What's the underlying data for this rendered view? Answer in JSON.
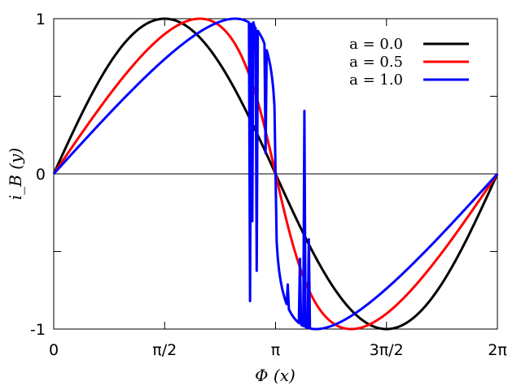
{
  "chart_data": {
    "type": "line",
    "xlabel": "Φ (x)",
    "ylabel": "i_B (y)",
    "xlim": [
      0,
      6.283185307
    ],
    "ylim": [
      -1,
      1
    ],
    "x_ticks": [
      {
        "value": 0,
        "label": "0"
      },
      {
        "value": 1.5707963,
        "label": "π/2"
      },
      {
        "value": 3.1415927,
        "label": "π"
      },
      {
        "value": 4.712389,
        "label": "3π/2"
      },
      {
        "value": 6.2831853,
        "label": "2π"
      }
    ],
    "y_ticks": [
      {
        "value": 1,
        "label": "1"
      },
      {
        "value": 0,
        "label": "0"
      },
      {
        "value": -1,
        "label": "-1"
      }
    ],
    "zero_line": true,
    "grid": false,
    "legend_position": "top-right",
    "series": [
      {
        "name": "a = 0.0",
        "a": 0.0,
        "color": "#000000",
        "x": [
          0,
          0.3927,
          0.7854,
          1.1781,
          1.5708,
          1.9635,
          2.3562,
          2.7489,
          3.1416,
          3.5343,
          3.927,
          4.3197,
          4.7124,
          5.1051,
          5.4978,
          5.8905,
          6.2832
        ],
        "values": [
          0,
          0.383,
          0.707,
          0.924,
          1.0,
          0.924,
          0.707,
          0.383,
          0,
          -0.383,
          -0.707,
          -0.924,
          -1.0,
          -0.924,
          -0.707,
          -0.383,
          0
        ]
      },
      {
        "name": "a = 0.5",
        "a": 0.5,
        "color": "#ff0000",
        "x": [
          0,
          0.3927,
          0.7854,
          1.1781,
          1.5708,
          1.9635,
          2.0944,
          2.3562,
          2.7489,
          3.1416,
          3.5343,
          3.927,
          4.1888,
          4.3197,
          4.7124,
          5.1051,
          5.4978,
          5.8905,
          6.2832
        ],
        "values": [
          0,
          0.312,
          0.603,
          0.835,
          0.97,
          1.0,
          0.995,
          0.933,
          0.601,
          0,
          -0.601,
          -0.933,
          -1.0,
          -0.994,
          -0.902,
          -0.712,
          -0.45,
          -0.19,
          0
        ]
      },
      {
        "name": "a = 1.0",
        "a": 1.0,
        "color": "#0000ff",
        "x": [
          0,
          0.3927,
          0.7854,
          1.1781,
          1.5708,
          1.9635,
          2.3562,
          2.5,
          2.7489,
          2.95,
          3.1416,
          3.33,
          3.5343,
          3.927,
          4.3197,
          4.7124,
          5.1051,
          5.4978,
          5.8905,
          6.2832
        ],
        "values": [
          0,
          0.25,
          0.5,
          0.74,
          0.93,
          1.0,
          1.0,
          0.99,
          0.95,
          0.7,
          0,
          -0.7,
          -0.95,
          -1.0,
          -0.94,
          -0.76,
          -0.55,
          -0.36,
          -0.18,
          0
        ]
      }
    ]
  }
}
